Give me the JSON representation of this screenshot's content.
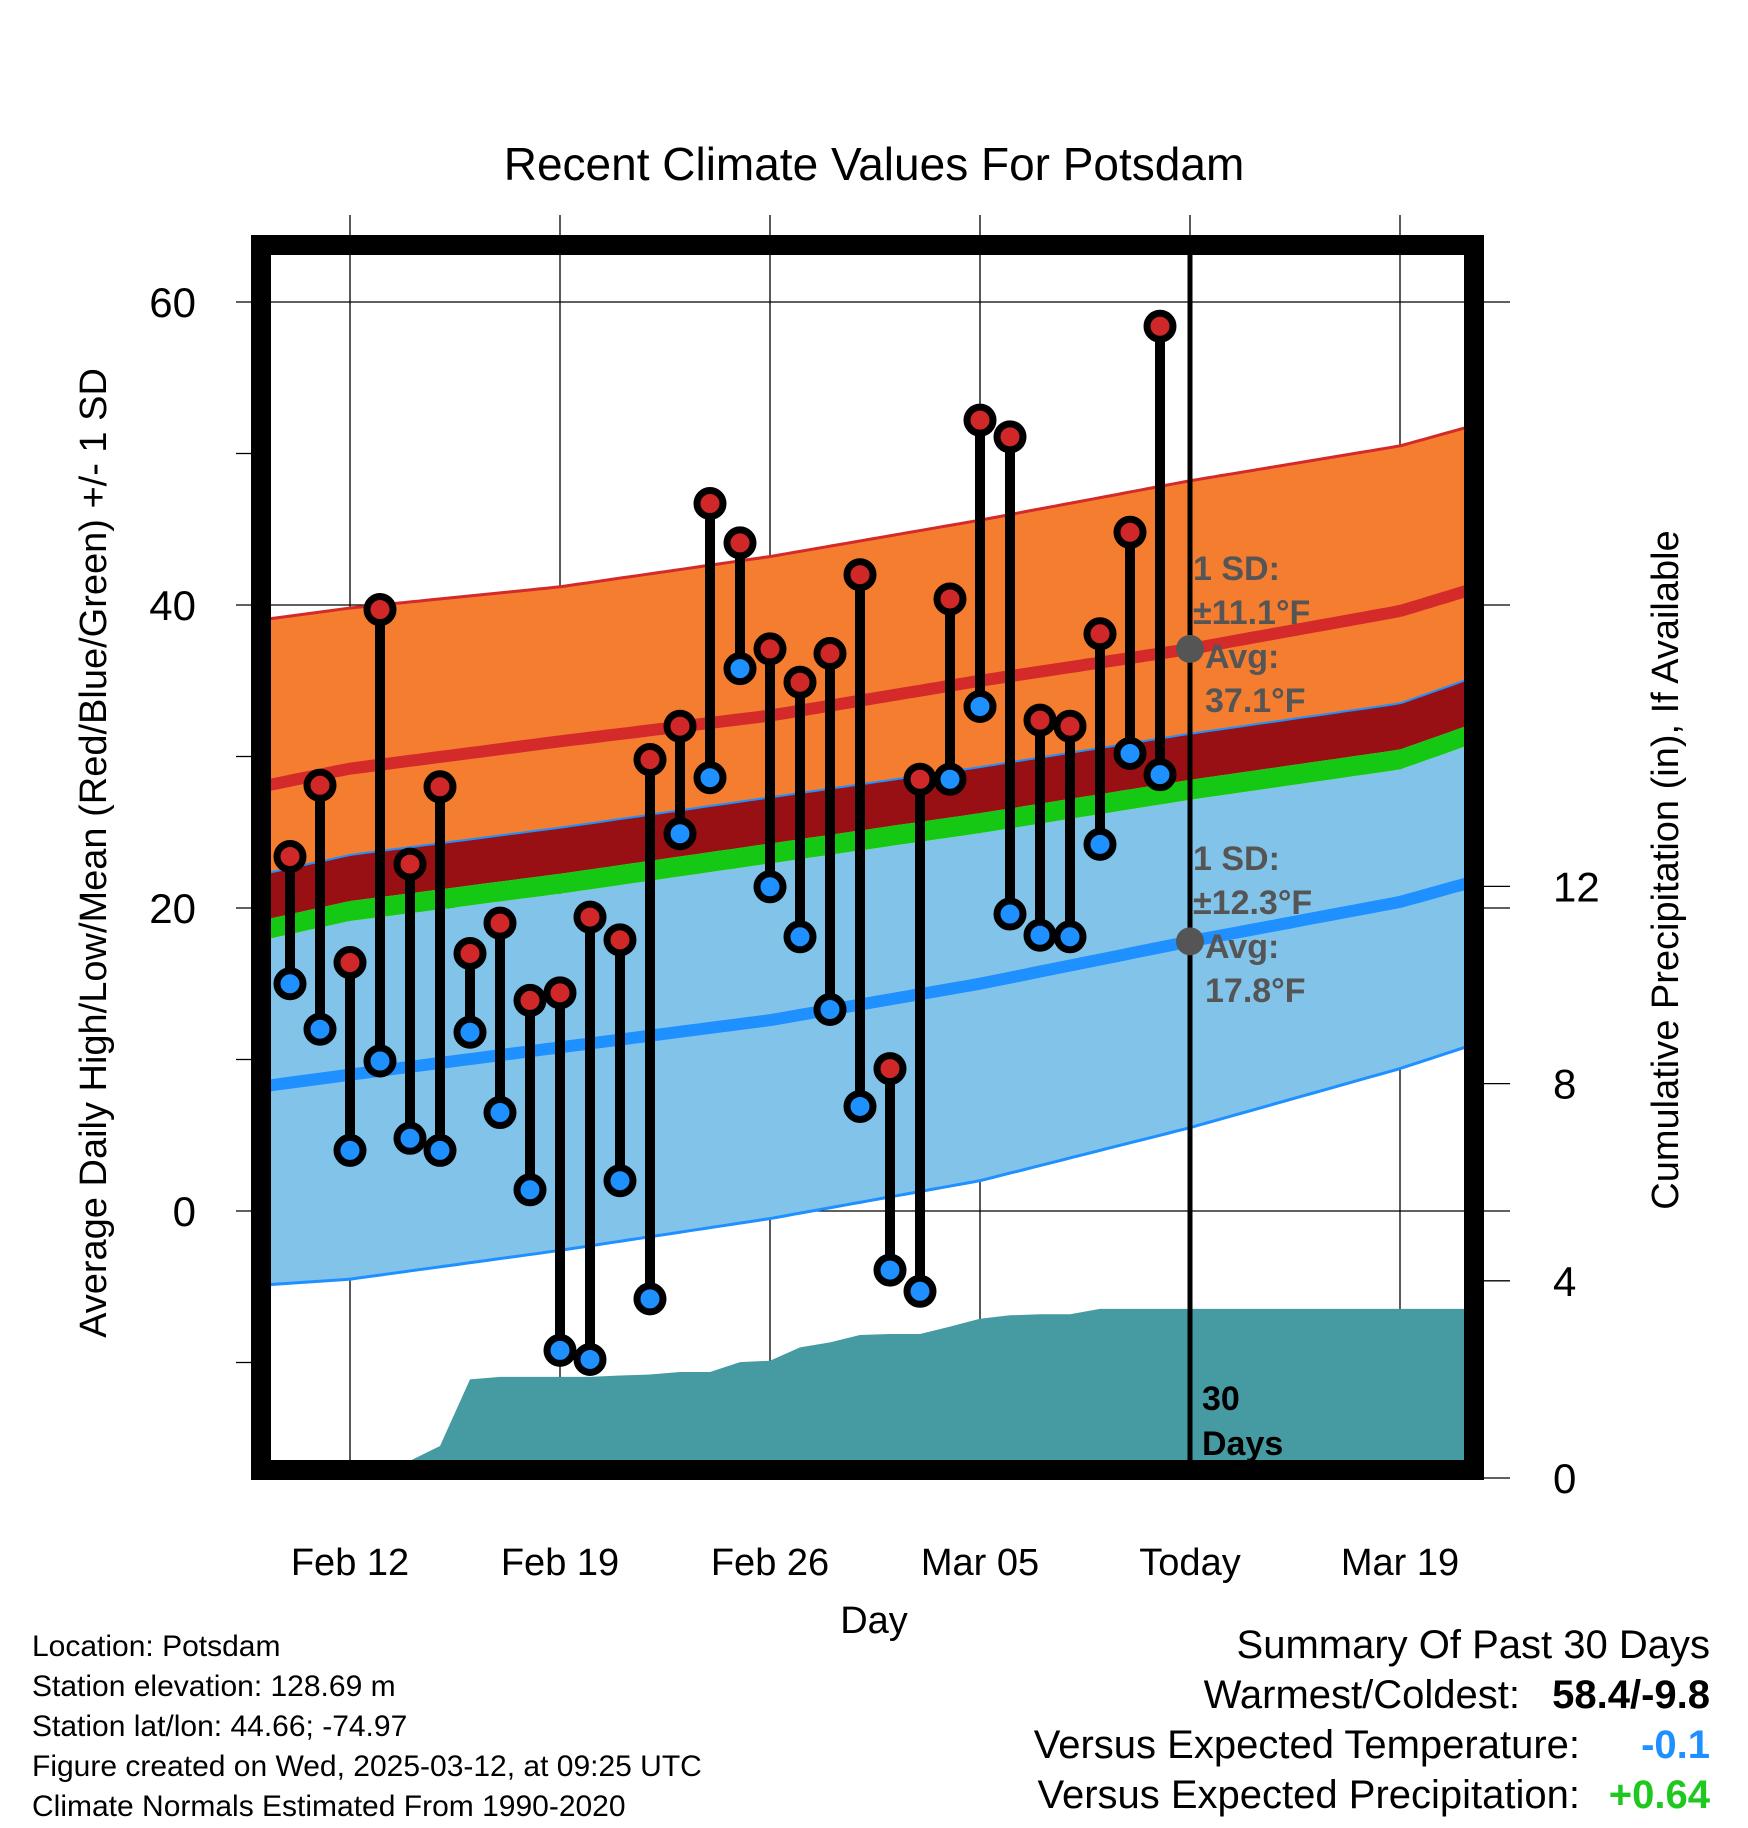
{
  "chart_data": {
    "type": "line",
    "title": "Recent Climate Values For Potsdam",
    "xlabel": "Day",
    "ylabel_left": "Average Daily High/Low/Mean (Red/Blue/Green) +/- 1 SD",
    "ylabel_right": "Cumulative Precipitation (in), If Available",
    "ylim_left": [
      -17,
      63
    ],
    "ylim_right": [
      0,
      25
    ],
    "yticks_left": [
      0,
      20,
      40,
      60
    ],
    "yticks_right": [
      0,
      4,
      8,
      12
    ],
    "x_ticks": [
      {
        "label": "Feb 12",
        "day": 12
      },
      {
        "label": "Feb 19",
        "day": 19
      },
      {
        "label": "Feb 26",
        "day": 26
      },
      {
        "label": "Mar 05",
        "day": 33
      },
      {
        "label": "Today",
        "day": 40
      },
      {
        "label": "Mar 19",
        "day": 47
      }
    ],
    "x_range_day": [
      8.8,
      49.5
    ],
    "today_day": 40,
    "window_label": [
      "30",
      "Days"
    ],
    "normals": {
      "day": [
        9,
        12,
        19,
        26,
        33,
        40,
        47,
        49
      ],
      "high_mean": [
        28.0,
        29.2,
        31.0,
        32.7,
        35.0,
        37.1,
        39.6,
        40.8
      ],
      "high_upper": [
        39.0,
        39.8,
        41.2,
        43.2,
        45.6,
        48.2,
        50.5,
        51.6
      ],
      "low_mean": [
        8.2,
        9.0,
        10.8,
        12.6,
        15.0,
        17.8,
        20.4,
        21.5
      ],
      "low_lower": [
        -4.9,
        -4.5,
        -2.6,
        -0.5,
        2.0,
        5.5,
        9.4,
        10.7
      ],
      "avg_mean": [
        18.5,
        19.8,
        21.6,
        23.6,
        25.6,
        27.8,
        29.8,
        31.2
      ]
    },
    "annotations": {
      "high_sd_label": [
        "1 SD:",
        "±11.1°F"
      ],
      "high_avg_label": [
        "Avg:",
        "37.1°F"
      ],
      "low_sd_label": [
        "1 SD:",
        "±12.3°F"
      ],
      "low_avg_label": [
        "Avg:",
        "17.8°F"
      ],
      "high_avg_value": 37.1,
      "low_avg_value": 17.8
    },
    "series": [
      {
        "name": "High",
        "color": "#d02828",
        "day": [
          10,
          11,
          12,
          13,
          14,
          15,
          16,
          17,
          18,
          19,
          20,
          21,
          22,
          23,
          24,
          25,
          26,
          27,
          28,
          29,
          30,
          31,
          32,
          33,
          34,
          35,
          36,
          37,
          38,
          39
        ],
        "values": [
          23.4,
          28.1,
          16.4,
          39.7,
          22.9,
          28.0,
          17.0,
          19.0,
          13.9,
          14.4,
          19.4,
          17.9,
          29.8,
          32.0,
          46.7,
          44.1,
          37.1,
          34.9,
          36.8,
          42.0,
          9.4,
          28.5,
          40.4,
          52.2,
          51.1,
          32.4,
          32.0,
          38.1,
          44.8,
          58.4
        ]
      },
      {
        "name": "Low",
        "color": "#1e90ff",
        "day": [
          10,
          11,
          12,
          13,
          14,
          15,
          16,
          17,
          18,
          19,
          20,
          21,
          22,
          23,
          24,
          25,
          26,
          27,
          28,
          29,
          30,
          31,
          32,
          33,
          34,
          35,
          36,
          37,
          38,
          39
        ],
        "values": [
          15.0,
          12.0,
          4.0,
          9.9,
          4.8,
          4.0,
          11.8,
          6.5,
          1.4,
          -9.2,
          -9.8,
          2.0,
          -5.8,
          24.9,
          28.6,
          35.8,
          21.4,
          18.1,
          13.3,
          6.9,
          -3.9,
          -5.3,
          28.5,
          33.3,
          19.6,
          18.2,
          18.1,
          24.2,
          30.2,
          28.8
        ]
      },
      {
        "name": "Cumulative Precipitation",
        "color": "#469aa2",
        "day": [
          12,
          13,
          14,
          15,
          16,
          17,
          18,
          19,
          20,
          21,
          22,
          23,
          24,
          25,
          26,
          27,
          28,
          29,
          30,
          31,
          32,
          33,
          34,
          35,
          36,
          37,
          38,
          39,
          40,
          49.5
        ],
        "values": [
          0.0,
          0.35,
          0.35,
          0.65,
          2.0,
          2.05,
          2.05,
          2.05,
          2.05,
          2.08,
          2.1,
          2.15,
          2.15,
          2.35,
          2.38,
          2.65,
          2.75,
          2.9,
          2.92,
          2.92,
          3.07,
          3.23,
          3.3,
          3.32,
          3.32,
          3.43,
          3.43,
          3.43,
          3.43,
          3.43
        ]
      }
    ]
  },
  "info": {
    "location": "Location: Potsdam",
    "elevation": "Station elevation: 128.69 m",
    "latlon": "Station lat/lon: 44.66; -74.97",
    "created": "Figure created on Wed, 2025-03-12, at 09:25 UTC",
    "normals": "Climate Normals Estimated From 1990-2020"
  },
  "summary": {
    "title": "Summary Of Past 30 Days",
    "warmest_label": "Warmest/Coldest:",
    "warmest_value": "58.4/-9.8",
    "temp_label": "Versus Expected Temperature:",
    "temp_value": "-0.1",
    "precip_label": "Versus Expected Precipitation:",
    "precip_value": "+0.64",
    "colors": {
      "temp": "#1e90ff",
      "precip": "#1ec81e"
    }
  },
  "colors": {
    "high_band": "#f47d30",
    "high_line": "#d42a2a",
    "between_band": "#981014",
    "avg_band": "#14c814",
    "low_band": "#82c3ea",
    "low_line": "#1e90ff",
    "precip": "#469aa2",
    "annotation": "#555555"
  }
}
